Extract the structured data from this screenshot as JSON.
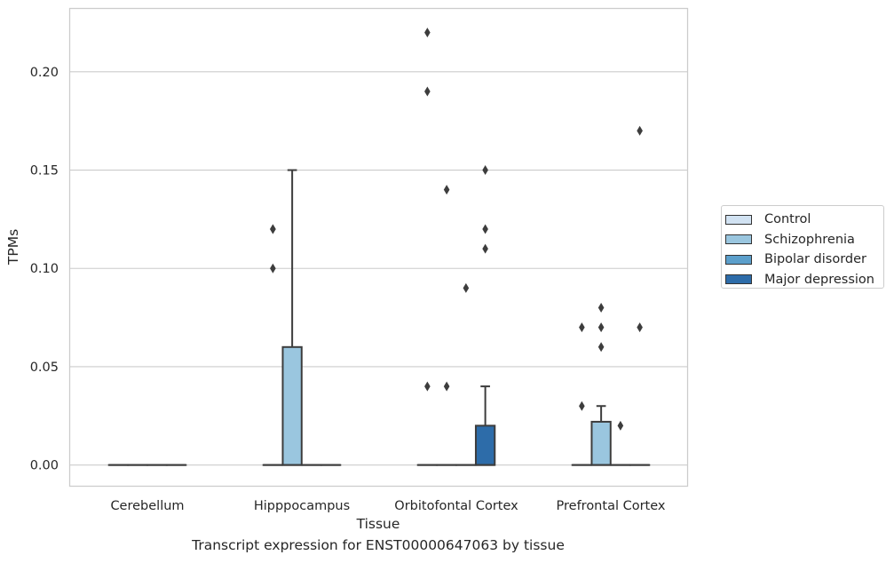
{
  "chart_data": {
    "type": "box",
    "xlabel": "Tissue",
    "ylabel": "TPMs",
    "ylim": [
      -0.011,
      0.232
    ],
    "yticks": [
      0.0,
      0.05,
      0.1,
      0.15,
      0.2
    ],
    "ytick_labels": [
      "0.00",
      "0.05",
      "0.10",
      "0.15",
      "0.20"
    ],
    "grid": "horizontal",
    "legend_position": "right",
    "categories": [
      "Cerebellum",
      "Hipppocampus",
      "Orbitofontal Cortex",
      "Prefrontal Cortex"
    ],
    "series": [
      {
        "name": "Control",
        "color": "#d1e2f2",
        "boxes": [
          {
            "q1": 0,
            "median": 0,
            "q3": 0,
            "whisker_low": 0,
            "whisker_high": 0,
            "outliers": []
          },
          {
            "q1": 0,
            "median": 0,
            "q3": 0,
            "whisker_low": 0,
            "whisker_high": 0,
            "outliers": [
              0.1,
              0.12,
              0.12
            ]
          },
          {
            "q1": 0,
            "median": 0,
            "q3": 0,
            "whisker_low": 0,
            "whisker_high": 0,
            "outliers": [
              0.04,
              0.19,
              0.22
            ]
          },
          {
            "q1": 0,
            "median": 0,
            "q3": 0,
            "whisker_low": 0,
            "whisker_high": 0,
            "outliers": [
              0.03,
              0.07
            ]
          }
        ]
      },
      {
        "name": "Schizophrenia",
        "color": "#9ac6df",
        "boxes": [
          {
            "q1": 0,
            "median": 0,
            "q3": 0,
            "whisker_low": 0,
            "whisker_high": 0,
            "outliers": []
          },
          {
            "q1": 0,
            "median": 0,
            "q3": 0.06,
            "whisker_low": 0,
            "whisker_high": 0.15,
            "outliers": []
          },
          {
            "q1": 0,
            "median": 0,
            "q3": 0,
            "whisker_low": 0,
            "whisker_high": 0,
            "outliers": [
              0.04,
              0.14
            ]
          },
          {
            "q1": 0,
            "median": 0,
            "q3": 0.022,
            "whisker_low": 0,
            "whisker_high": 0.03,
            "outliers": [
              0.06,
              0.07,
              0.08
            ]
          }
        ]
      },
      {
        "name": "Bipolar disorder",
        "color": "#5c9fcb",
        "boxes": [
          {
            "q1": 0,
            "median": 0,
            "q3": 0,
            "whisker_low": 0,
            "whisker_high": 0,
            "outliers": []
          },
          {
            "q1": 0,
            "median": 0,
            "q3": 0,
            "whisker_low": 0,
            "whisker_high": 0,
            "outliers": []
          },
          {
            "q1": 0,
            "median": 0,
            "q3": 0,
            "whisker_low": 0,
            "whisker_high": 0,
            "outliers": [
              0.09
            ]
          },
          {
            "q1": 0,
            "median": 0,
            "q3": 0,
            "whisker_low": 0,
            "whisker_high": 0,
            "outliers": [
              0.02
            ]
          }
        ]
      },
      {
        "name": "Major depression",
        "color": "#2d6ca9",
        "boxes": [
          {
            "q1": 0,
            "median": 0,
            "q3": 0,
            "whisker_low": 0,
            "whisker_high": 0,
            "outliers": []
          },
          {
            "q1": 0,
            "median": 0,
            "q3": 0,
            "whisker_low": 0,
            "whisker_high": 0,
            "outliers": []
          },
          {
            "q1": 0,
            "median": 0,
            "q3": 0.02,
            "whisker_low": 0,
            "whisker_high": 0.04,
            "outliers": [
              0.11,
              0.12,
              0.15
            ]
          },
          {
            "q1": 0,
            "median": 0,
            "q3": 0,
            "whisker_low": 0,
            "whisker_high": 0,
            "outliers": [
              0.07,
              0.17
            ]
          }
        ]
      }
    ],
    "caption": "Transcript expression for ENST00000647063 by tissue"
  },
  "colors": {
    "grid": "#cccccc",
    "edge": "#3d3d3d",
    "axes_frame": "#cccccc",
    "text": "#262626"
  }
}
